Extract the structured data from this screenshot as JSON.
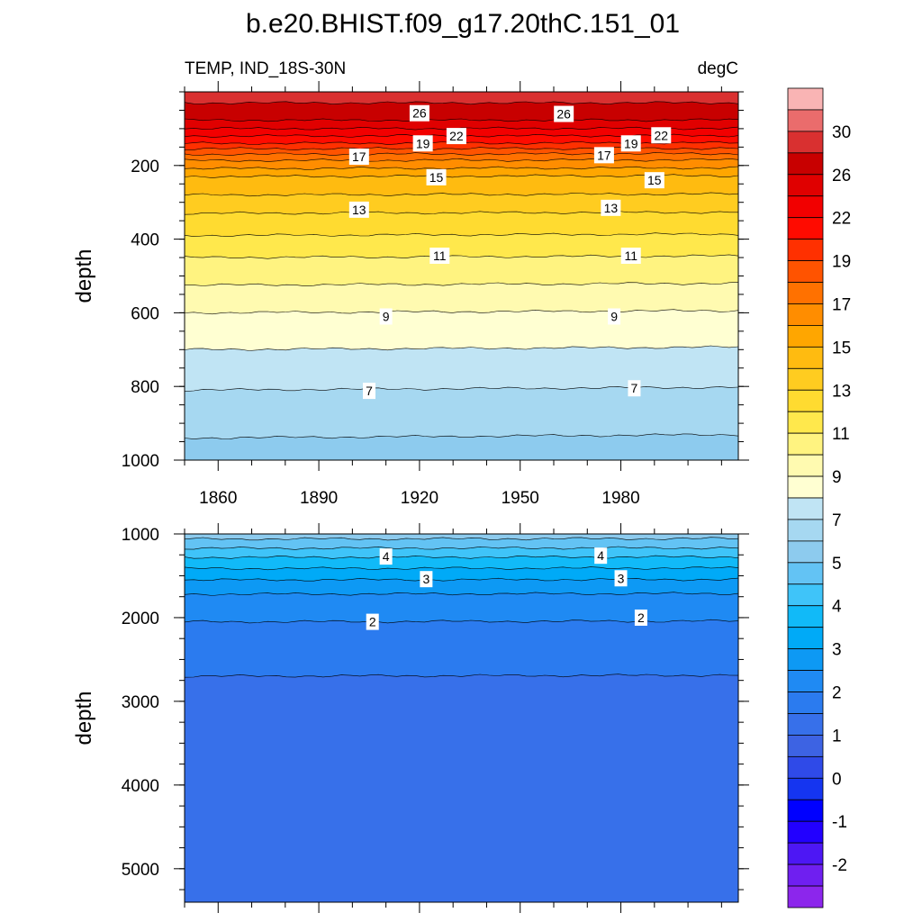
{
  "chart_data": {
    "type": "heatmap",
    "title": "b.e20.BHIST.f09_g17.20thC.151_01",
    "subtitle_left": "TEMP, IND_18S-30N",
    "subtitle_right": "degC",
    "colorbar": {
      "labels": [
        "30",
        "26",
        "22",
        "19",
        "17",
        "15",
        "13",
        "11",
        "9",
        "7",
        "5",
        "4",
        "3",
        "2",
        "1",
        "0",
        "-1",
        "-2"
      ],
      "colors": [
        "#f9b4b4",
        "#ea6c6c",
        "#d93030",
        "#c80000",
        "#e00000",
        "#f20000",
        "#ff0b00",
        "#ff3000",
        "#ff5300",
        "#ff7100",
        "#ff8d00",
        "#ffa600",
        "#ffbb10",
        "#ffcc20",
        "#ffdb30",
        "#ffe84c",
        "#fff380",
        "#fffab0",
        "#ffffd2",
        "#c0e4f4",
        "#a6d8f1",
        "#8dcbee",
        "#63c3f4",
        "#3fc4f9",
        "#11baf8",
        "#00aaf7",
        "#0d99f4",
        "#1f8af3",
        "#2b7bef",
        "#3770ea",
        "#3d63e3",
        "#2f4ae8",
        "#1535f0",
        "#0000ff",
        "#2200ff",
        "#4d17f4",
        "#6f1ff0",
        "#8c26ec"
      ]
    },
    "panels": [
      {
        "name": "upper",
        "ylabel": "depth",
        "yrange": [
          0,
          1000
        ],
        "yticks": [
          "200",
          "400",
          "600",
          "800",
          "1000"
        ],
        "xrange": [
          1850,
          2015
        ],
        "xticks": [
          "1860",
          "1890",
          "1920",
          "1950",
          "1980"
        ],
        "profile": [
          {
            "depth": 0,
            "temp": 28.5
          },
          {
            "depth": 60,
            "temp": 27.5
          },
          {
            "depth": 100,
            "temp": 24
          },
          {
            "depth": 140,
            "temp": 20
          },
          {
            "depth": 180,
            "temp": 17.3
          },
          {
            "depth": 230,
            "temp": 15
          },
          {
            "depth": 330,
            "temp": 13
          },
          {
            "depth": 450,
            "temp": 11
          },
          {
            "depth": 600,
            "temp": 9
          },
          {
            "depth": 700,
            "temp": 8
          },
          {
            "depth": 810,
            "temp": 7
          },
          {
            "depth": 940,
            "temp": 6
          },
          {
            "depth": 1000,
            "temp": 5.7
          }
        ],
        "contour_labels": [
          {
            "text": "26",
            "year": 1920,
            "depth": 58
          },
          {
            "text": "26",
            "year": 1963,
            "depth": 60
          },
          {
            "text": "22",
            "year": 1931,
            "depth": 120
          },
          {
            "text": "22",
            "year": 1992,
            "depth": 118
          },
          {
            "text": "19",
            "year": 1921,
            "depth": 140
          },
          {
            "text": "19",
            "year": 1983,
            "depth": 140
          },
          {
            "text": "17",
            "year": 1902,
            "depth": 176
          },
          {
            "text": "17",
            "year": 1975,
            "depth": 172
          },
          {
            "text": "15",
            "year": 1925,
            "depth": 232
          },
          {
            "text": "15",
            "year": 1990,
            "depth": 240
          },
          {
            "text": "13",
            "year": 1902,
            "depth": 320
          },
          {
            "text": "13",
            "year": 1977,
            "depth": 315
          },
          {
            "text": "11",
            "year": 1926,
            "depth": 445
          },
          {
            "text": "11",
            "year": 1983,
            "depth": 445
          },
          {
            "text": "9",
            "year": 1910,
            "depth": 610
          },
          {
            "text": "9",
            "year": 1978,
            "depth": 610
          },
          {
            "text": "7",
            "year": 1905,
            "depth": 812
          },
          {
            "text": "7",
            "year": 1984,
            "depth": 805
          }
        ]
      },
      {
        "name": "lower",
        "ylabel": "depth",
        "yrange": [
          1000,
          5400
        ],
        "yticks": [
          "1000",
          "2000",
          "3000",
          "4000",
          "5000"
        ],
        "xrange": [
          1850,
          2015
        ],
        "xticks": [],
        "profile": [
          {
            "depth": 1000,
            "temp": 5.7
          },
          {
            "depth": 1060,
            "temp": 5.0
          },
          {
            "depth": 1150,
            "temp": 4.6
          },
          {
            "depth": 1280,
            "temp": 4.0
          },
          {
            "depth": 1400,
            "temp": 3.55
          },
          {
            "depth": 1550,
            "temp": 3.0
          },
          {
            "depth": 1720,
            "temp": 2.5
          },
          {
            "depth": 2050,
            "temp": 2.0
          },
          {
            "depth": 2700,
            "temp": 1.5
          },
          {
            "depth": 5400,
            "temp": 1.05
          }
        ],
        "contour_labels": [
          {
            "text": "4",
            "year": 1910,
            "depth": 1270
          },
          {
            "text": "4",
            "year": 1974,
            "depth": 1260
          },
          {
            "text": "3",
            "year": 1922,
            "depth": 1540
          },
          {
            "text": "3",
            "year": 1980,
            "depth": 1530
          },
          {
            "text": "2",
            "year": 1906,
            "depth": 2050
          },
          {
            "text": "2",
            "year": 1986,
            "depth": 2000
          }
        ]
      }
    ]
  }
}
